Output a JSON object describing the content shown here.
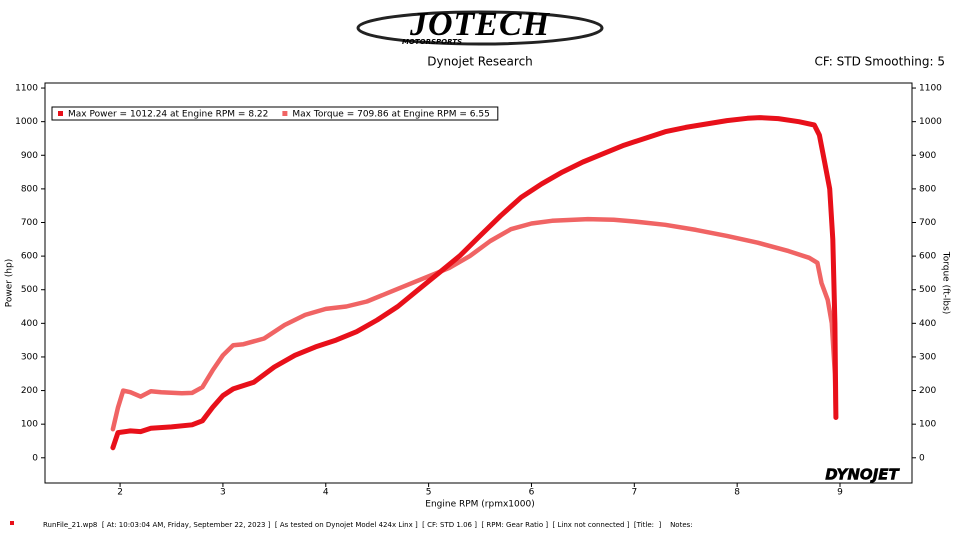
{
  "chart_data": {
    "type": "line",
    "brand": "JOTECH",
    "brand_sub": "MOTORSPORTS",
    "title": "Dynojet Research",
    "subtitle": "CF: STD Smoothing: 5",
    "xlabel": "Engine RPM (rpmx1000)",
    "ylabel": "Power (hp)",
    "y2label": "Torque (ft-lbs)",
    "watermark": "DYNOJET",
    "footer": "RunFile_21.wp8  [ At: 10:03:04 AM, Friday, September 22, 2023 ]  [ As tested on Dynojet Model 424x Linx ]  [ CF: STD 1.06 ]  [ RPM: Gear Ratio ]  [ Linx not connected ]  [Title:  ]    Notes:",
    "xlim": [
      1.27,
      9.7
    ],
    "xticks": [
      2,
      3,
      4,
      5,
      6,
      7,
      8,
      9
    ],
    "ylim": [
      -75,
      1115
    ],
    "yticks": [
      0,
      100,
      200,
      300,
      400,
      500,
      600,
      700,
      800,
      900,
      1000,
      1100
    ],
    "y2lim": [
      -75,
      1115
    ],
    "y2ticks": [
      0,
      100,
      200,
      300,
      400,
      500,
      600,
      700,
      800,
      900,
      1000,
      1100
    ],
    "grid": false,
    "legend": "top-left",
    "series": [
      {
        "name": "Max Power = 1012.24 at Engine RPM = 8.22",
        "color": "#e8101a",
        "x": [
          1.93,
          1.98,
          2.1,
          2.2,
          2.3,
          2.5,
          2.7,
          2.8,
          2.9,
          3.0,
          3.1,
          3.3,
          3.5,
          3.7,
          3.9,
          4.1,
          4.3,
          4.5,
          4.7,
          4.9,
          5.1,
          5.3,
          5.5,
          5.7,
          5.9,
          6.1,
          6.3,
          6.5,
          6.7,
          6.9,
          7.1,
          7.3,
          7.5,
          7.7,
          7.9,
          8.1,
          8.22,
          8.4,
          8.6,
          8.75,
          8.8,
          8.85,
          8.9,
          8.93,
          8.95,
          8.96
        ],
        "values": [
          30,
          75,
          80,
          78,
          88,
          92,
          98,
          110,
          150,
          185,
          205,
          225,
          270,
          305,
          330,
          350,
          375,
          410,
          450,
          500,
          550,
          600,
          660,
          720,
          775,
          815,
          850,
          880,
          905,
          930,
          950,
          970,
          983,
          993,
          1003,
          1010,
          1012,
          1009,
          1000,
          990,
          960,
          880,
          800,
          650,
          400,
          120
        ]
      },
      {
        "name": "Max Torque = 709.86 at Engine RPM = 6.55",
        "color": "#f06464",
        "axis": "y2",
        "x": [
          1.93,
          1.98,
          2.03,
          2.1,
          2.2,
          2.3,
          2.4,
          2.6,
          2.7,
          2.8,
          2.9,
          3.0,
          3.1,
          3.2,
          3.4,
          3.6,
          3.8,
          4.0,
          4.2,
          4.4,
          4.6,
          4.8,
          5.0,
          5.2,
          5.4,
          5.6,
          5.8,
          6.0,
          6.2,
          6.55,
          6.8,
          7.0,
          7.3,
          7.6,
          7.9,
          8.2,
          8.5,
          8.7,
          8.78,
          8.82,
          8.88,
          8.92,
          8.95,
          8.96
        ],
        "values": [
          85,
          150,
          200,
          195,
          182,
          198,
          195,
          192,
          193,
          210,
          260,
          305,
          335,
          338,
          355,
          395,
          425,
          443,
          450,
          465,
          490,
          515,
          540,
          565,
          600,
          645,
          680,
          697,
          705,
          710,
          708,
          703,
          693,
          678,
          660,
          640,
          615,
          595,
          580,
          520,
          470,
          400,
          250,
          120
        ]
      }
    ]
  }
}
